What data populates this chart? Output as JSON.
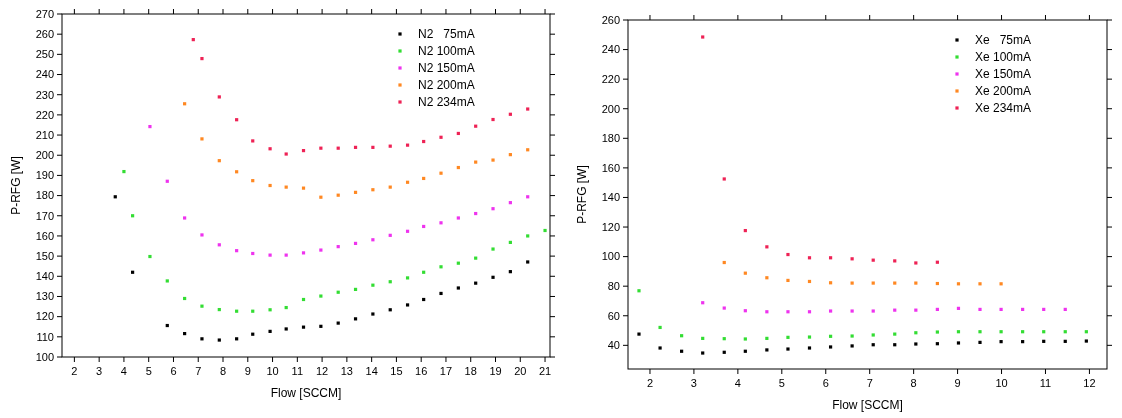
{
  "chart_data": [
    {
      "type": "scatter",
      "xlabel": "Flow [SCCM]",
      "ylabel": "P-RFG [W]",
      "xlim": [
        1.5,
        21.2
      ],
      "xticks": [
        2,
        3,
        4,
        5,
        6,
        7,
        8,
        9,
        10,
        11,
        12,
        13,
        14,
        15,
        16,
        17,
        18,
        19,
        20,
        21
      ],
      "ylim": [
        100,
        270
      ],
      "yticks": [
        100,
        110,
        120,
        130,
        140,
        150,
        160,
        170,
        180,
        190,
        200,
        210,
        220,
        230,
        240,
        250,
        260,
        270
      ],
      "legend": "top right",
      "marker": "square",
      "series": [
        {
          "name": "N2   75mA",
          "color": "#000000",
          "x": [
            3.65,
            4.35,
            5.75,
            6.45,
            7.15,
            7.85,
            8.55,
            9.2,
            9.9,
            10.55,
            11.25,
            11.95,
            12.65,
            13.35,
            14.05,
            14.75,
            15.45,
            16.1,
            16.8,
            17.5,
            18.2,
            18.9,
            19.6,
            20.3
          ],
          "values": [
            179.4,
            142,
            115.6,
            111.6,
            109,
            108.4,
            109,
            111.3,
            112.7,
            113.9,
            114.8,
            115.2,
            116.8,
            118.9,
            121.3,
            123.4,
            125.8,
            128.5,
            131.5,
            134.2,
            136.6,
            139.5,
            142.3,
            147.1
          ]
        },
        {
          "name": "N2 100mA",
          "color": "#33dd33",
          "x": [
            4.0,
            4.35,
            5.05,
            5.75,
            6.45,
            7.15,
            7.85,
            8.55,
            9.2,
            9.9,
            10.55,
            11.25,
            11.95,
            12.65,
            13.35,
            14.05,
            14.75,
            15.45,
            16.1,
            16.8,
            17.5,
            18.2,
            18.9,
            19.6,
            20.3,
            21.0
          ],
          "values": [
            191.9,
            170,
            149.8,
            137.7,
            129,
            125.2,
            123.5,
            122.7,
            122.7,
            123.4,
            124.5,
            128.5,
            130.2,
            132.1,
            133.5,
            135.6,
            137.3,
            139.2,
            142,
            144.7,
            146.5,
            149,
            153.5,
            156.8,
            160,
            162.7
          ]
        },
        {
          "name": "N2 150mA",
          "color": "#ee33ee",
          "x": [
            5.05,
            5.75,
            6.45,
            7.15,
            7.85,
            8.55,
            9.2,
            9.9,
            10.55,
            11.25,
            11.95,
            12.65,
            13.35,
            14.05,
            14.75,
            15.45,
            16.1,
            16.8,
            17.5,
            18.2,
            18.9,
            19.6,
            20.3
          ],
          "values": [
            214.2,
            187.1,
            168.9,
            160.5,
            155.6,
            152.7,
            151.3,
            150.5,
            150.5,
            151.6,
            153,
            154.7,
            156.3,
            158.1,
            160.3,
            162.3,
            164.7,
            166.5,
            168.9,
            171.1,
            173.5,
            176.5,
            179.4
          ]
        },
        {
          "name": "N2 200mA",
          "color": "#ff8822",
          "x": [
            6.45,
            7.15,
            7.85,
            8.55,
            9.2,
            9.9,
            10.55,
            11.25,
            11.95,
            12.65,
            13.35,
            14.05,
            14.75,
            15.45,
            16.1,
            16.8,
            17.5,
            18.2,
            18.9,
            19.6,
            20.3
          ],
          "values": [
            225.5,
            208.1,
            197.3,
            191.8,
            187.4,
            185,
            184.2,
            183.7,
            179.2,
            180.2,
            181.6,
            182.9,
            184.2,
            186.6,
            188.5,
            191.1,
            193.9,
            196.6,
            197.6,
            200.3,
            202.7
          ]
        },
        {
          "name": "N2 234mA",
          "color": "#ee2255",
          "x": [
            6.8,
            7.15,
            7.85,
            8.55,
            9.2,
            9.9,
            10.55,
            11.25,
            11.95,
            12.65,
            13.35,
            14.05,
            14.75,
            15.45,
            16.1,
            16.8,
            17.5,
            18.2,
            18.9,
            19.6,
            20.3
          ],
          "values": [
            257.3,
            247.9,
            228.9,
            217.6,
            207.1,
            203.2,
            200.6,
            202.3,
            203.5,
            203.5,
            203.9,
            203.9,
            204.5,
            205,
            206.8,
            208.9,
            210.8,
            214.4,
            217.7,
            220.3,
            222.9
          ]
        }
      ]
    },
    {
      "type": "scatter",
      "xlabel": "Flow [SCCM]",
      "ylabel": "P-RFG [W]",
      "xlim": [
        1.5,
        12.4
      ],
      "xticks": [
        2,
        3,
        4,
        5,
        6,
        7,
        8,
        9,
        10,
        11,
        12
      ],
      "ylim": [
        24,
        260
      ],
      "yticks": [
        40,
        60,
        80,
        100,
        120,
        140,
        160,
        180,
        200,
        220,
        240,
        260
      ],
      "legend": "top right",
      "marker": "square",
      "series": [
        {
          "name": "Xe   75mA",
          "color": "#000000",
          "x": [
            1.75,
            2.23,
            2.72,
            3.2,
            3.69,
            4.17,
            4.66,
            5.14,
            5.63,
            6.11,
            6.6,
            7.08,
            7.57,
            8.05,
            8.54,
            9.02,
            9.51,
            9.99,
            10.48,
            10.96,
            11.45,
            11.93
          ],
          "values": [
            47.6,
            38.2,
            36,
            34.8,
            35.3,
            36,
            36.9,
            37.5,
            38.2,
            38.9,
            39.6,
            40.4,
            40.4,
            40.9,
            41.1,
            41.6,
            42,
            42.5,
            42.5,
            42.7,
            42.7,
            42.9
          ]
        },
        {
          "name": "Xe 100mA",
          "color": "#33dd33",
          "x": [
            1.75,
            2.23,
            2.72,
            3.2,
            3.69,
            4.17,
            4.66,
            5.14,
            5.63,
            6.11,
            6.6,
            7.08,
            7.57,
            8.05,
            8.54,
            9.02,
            9.51,
            9.99,
            10.48,
            10.96,
            11.45,
            11.93
          ],
          "values": [
            76.9,
            52.1,
            46.5,
            44.7,
            44.5,
            44.3,
            44.7,
            45.4,
            45.6,
            46.1,
            46.3,
            47,
            47.6,
            48.5,
            49,
            49.2,
            49.2,
            49.2,
            49.2,
            49.2,
            49.2,
            49.2
          ]
        },
        {
          "name": "Xe 150mA",
          "color": "#ee33ee",
          "x": [
            3.2,
            3.69,
            4.17,
            4.66,
            5.14,
            5.63,
            6.11,
            6.6,
            7.08,
            7.57,
            8.05,
            8.54,
            9.02,
            9.51,
            9.99,
            10.48,
            10.96,
            11.45
          ],
          "values": [
            68.8,
            65.2,
            63.4,
            62.7,
            62.7,
            62.7,
            63.2,
            63.2,
            63.2,
            63.8,
            63.8,
            64.3,
            65,
            64.3,
            64.3,
            64.3,
            64.3,
            64.3
          ]
        },
        {
          "name": "Xe 200mA",
          "color": "#ff8822",
          "x": [
            3.69,
            4.17,
            4.66,
            5.14,
            5.63,
            6.11,
            6.6,
            7.08,
            7.57,
            8.05,
            8.54,
            9.02,
            9.51,
            9.99
          ],
          "values": [
            96,
            88.8,
            85.7,
            83.9,
            83.2,
            82.3,
            82.1,
            82.1,
            82.1,
            82.1,
            81.8,
            81.6,
            81.6,
            81.6
          ]
        },
        {
          "name": "Xe 234mA",
          "color": "#ee2255",
          "x": [
            3.2,
            3.69,
            4.17,
            4.66,
            5.14,
            5.63,
            6.11,
            6.6,
            7.08,
            7.57,
            8.05,
            8.54
          ],
          "values": [
            248.5,
            152.5,
            117.6,
            106.6,
            101.4,
            99.2,
            99.2,
            98.5,
            97.6,
            97.1,
            95.7,
            96.2
          ]
        }
      ]
    }
  ]
}
